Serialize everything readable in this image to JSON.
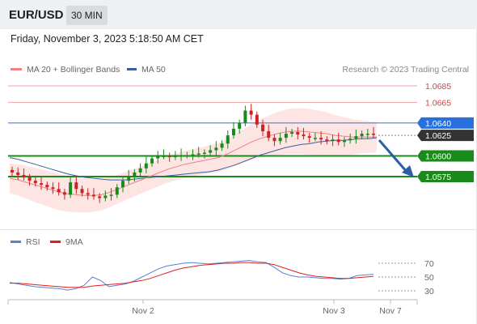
{
  "header": {
    "symbol": "EUR/USD",
    "interval": "30 MIN"
  },
  "datetime": "Friday, November 3, 2023 5:18:50 AM CET",
  "legend": {
    "bollinger": "MA 20 + Bollinger Bands",
    "ma50": "MA 50"
  },
  "copyright": "Research © 2023 Trading Central",
  "indicator_legend": {
    "rsi": "RSI",
    "ma9": "9MA"
  },
  "colors": {
    "bollinger_line": "#f08080",
    "bollinger_fill": "#fde0de",
    "ma50": "#3a5f9e",
    "resistance": "#d94040",
    "current_price_line": "#4a7fdc",
    "current_price_badge": "#2a6fdc",
    "support": "#1a8a1a",
    "candle_up": "#1a8a1a",
    "candle_down": "#d42020",
    "last_price_badge": "#333333",
    "forecast_arrow": "#2a5fa8",
    "rsi": "#5b7fd4",
    "rsi_ma": "#e02020"
  },
  "chart_data": [
    {
      "type": "candlestick",
      "title": "EUR/USD",
      "ylim": [
        1.054,
        1.0695
      ],
      "x_ticks": [
        "Nov 2",
        "Nov 3",
        "Nov 7"
      ],
      "resistance_levels": [
        "1.0685",
        "1.0665"
      ],
      "pivot_level": "1.0640",
      "last_price": "1.0625",
      "support_levels": [
        "1.0600",
        "1.0575"
      ],
      "series": [
        {
          "name": "MA 20 + Bollinger Bands",
          "values": [
            1.0573,
            1.0571,
            1.0568,
            1.0565,
            1.0562,
            1.0559,
            1.0556,
            1.0554,
            1.0553,
            1.0552,
            1.0552,
            1.0553,
            1.0556,
            1.056,
            1.0564,
            1.0568,
            1.0572,
            1.0576,
            1.058,
            1.0584,
            1.0587,
            1.059,
            1.0592,
            1.0594,
            1.0596,
            1.0598,
            1.0602,
            1.0607,
            1.0612,
            1.0617,
            1.0621,
            1.0624,
            1.0627,
            1.0629,
            1.063,
            1.063,
            1.0629,
            1.0628,
            1.0627,
            1.0625,
            1.0624,
            1.0623,
            1.0623,
            1.0623,
            1.0623
          ]
        },
        {
          "name": "MA 50",
          "values": [
            1.0598,
            1.0596,
            1.0593,
            1.059,
            1.0587,
            1.0584,
            1.0581,
            1.0578,
            1.0576,
            1.0574,
            1.0573,
            1.0572,
            1.0571,
            1.0571,
            1.0571,
            1.0572,
            1.0573,
            1.0574,
            1.0575,
            1.0576,
            1.0577,
            1.0578,
            1.0579,
            1.058,
            1.0581,
            1.0583,
            1.0586,
            1.0589,
            1.0593,
            1.0597,
            1.0601,
            1.0604,
            1.0607,
            1.061,
            1.0612,
            1.0614,
            1.0615,
            1.0617,
            1.0618,
            1.0619,
            1.0619,
            1.062,
            1.0621,
            1.0621,
            1.0622
          ]
        }
      ]
    },
    {
      "type": "line",
      "ylim": [
        15,
        85
      ],
      "y_ticks": [
        "70",
        "50",
        "30"
      ],
      "x_ticks": [
        "Nov 2",
        "Nov 3",
        "Nov 7"
      ],
      "series": [
        {
          "name": "RSI",
          "values": [
            42,
            40,
            38,
            36,
            35,
            34,
            33,
            31,
            33,
            38,
            50,
            45,
            36,
            38,
            40,
            44,
            50,
            56,
            62,
            66,
            68,
            70,
            71,
            70,
            69,
            70,
            71,
            72,
            73,
            74,
            72,
            71,
            64,
            56,
            52,
            50,
            50,
            49,
            48,
            48,
            47,
            48,
            52,
            53,
            54
          ]
        },
        {
          "name": "9MA",
          "values": [
            41,
            41,
            40,
            39,
            38,
            37,
            36,
            35,
            35,
            35,
            37,
            38,
            39,
            40,
            41,
            43,
            45,
            48,
            52,
            56,
            60,
            63,
            65,
            67,
            68,
            69,
            70,
            70,
            71,
            71,
            70,
            70,
            68,
            64,
            60,
            56,
            53,
            51,
            50,
            49,
            48,
            48,
            49,
            50,
            51
          ]
        }
      ]
    }
  ]
}
